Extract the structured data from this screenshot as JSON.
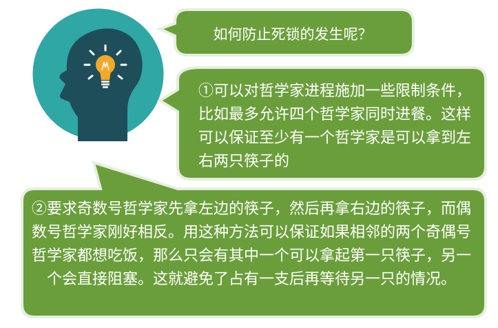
{
  "question": "如何防止死锁的发生呢？",
  "solution_1": "①可以对哲学家进程施加一些限制条件，比如最多允许四个哲学家同时进餐。这样可以保证至少有一个哲学家是可以拿到左右两只筷子的",
  "solution_2": "②要求奇数号哲学家先拿左边的筷子，然后再拿右边的筷子，而偶数号哲学家刚好相反。用这种方法可以保证如果相邻的两个奇偶号哲学家都想吃饭，那么只会有其中一个可以拿起第一只筷子，另一个会直接阻塞。这就避免了占有一支后再等待另一只的情况。",
  "icon": "thinking-head-lightbulb-icon",
  "colors": {
    "bubble_fill": "#6a9e3b",
    "bubble_border": "#e6efdf",
    "circle": "#2fa7a4",
    "head": "#1f4e5b",
    "bulb": "#f3a82a",
    "text": "#ffffff"
  }
}
